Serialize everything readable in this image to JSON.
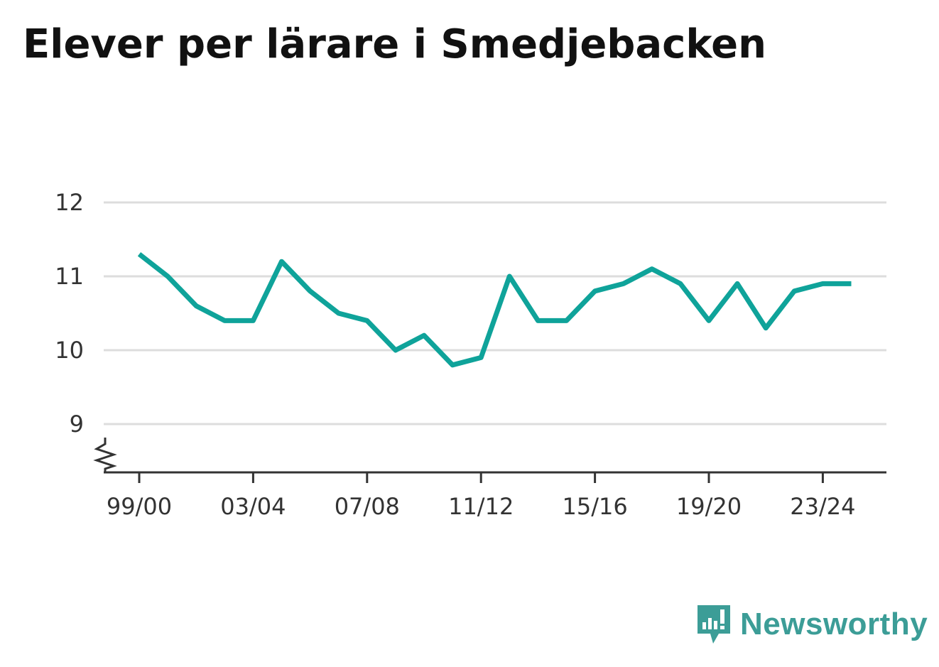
{
  "title": "Elever per lärare i Smedjebacken",
  "brand": {
    "name": "Newsworthy",
    "icon": "newsworthy-logo-icon",
    "color": "#3c9d97"
  },
  "chart_data": {
    "type": "line",
    "title": "Elever per lärare i Smedjebacken",
    "xlabel": "",
    "ylabel": "",
    "ylim": [
      8.35,
      12
    ],
    "y_axis_break": true,
    "grid": true,
    "y_ticks": [
      9,
      10,
      11,
      12
    ],
    "x_tick_labels": [
      "99/00",
      "03/04",
      "07/08",
      "11/12",
      "15/16",
      "19/20",
      "23/24"
    ],
    "line_color": "#0fa39a",
    "series": [
      {
        "x": [
          "99/00",
          "00/01",
          "01/02",
          "02/03",
          "03/04",
          "04/05",
          "05/06",
          "06/07",
          "07/08",
          "08/09",
          "09/10",
          "10/11",
          "11/12",
          "12/13",
          "13/14",
          "14/15",
          "15/16",
          "16/17",
          "17/18",
          "18/19",
          "19/20",
          "20/21",
          "21/22",
          "22/23",
          "23/24",
          "24/25"
        ],
        "values": [
          11.3,
          11.0,
          10.6,
          10.4,
          10.4,
          11.2,
          10.8,
          10.5,
          10.4,
          10.0,
          10.2,
          9.8,
          9.9,
          11.0,
          10.4,
          10.4,
          10.8,
          10.9,
          11.1,
          10.9,
          10.4,
          10.9,
          10.3,
          10.8,
          10.9,
          10.9
        ]
      }
    ]
  }
}
